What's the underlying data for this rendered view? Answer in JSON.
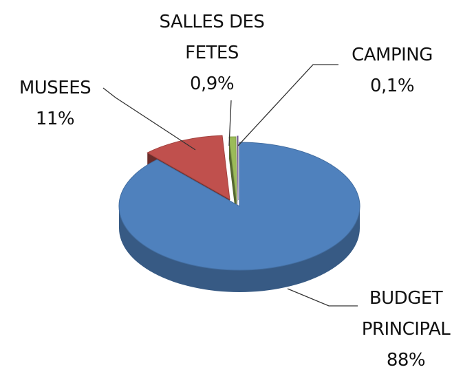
{
  "chart_data": {
    "type": "pie3d",
    "categories": [
      "BUDGET PRINCIPAL",
      "MUSEES",
      "SALLES DES FETES",
      "CAMPING"
    ],
    "values": [
      88,
      11,
      0.9,
      0.1
    ],
    "value_labels": [
      "88%",
      "11%",
      "0,9%",
      "0,1%"
    ],
    "colors": [
      "#4f81bd",
      "#c0504d",
      "#9bbb59",
      "#8064a2"
    ]
  }
}
